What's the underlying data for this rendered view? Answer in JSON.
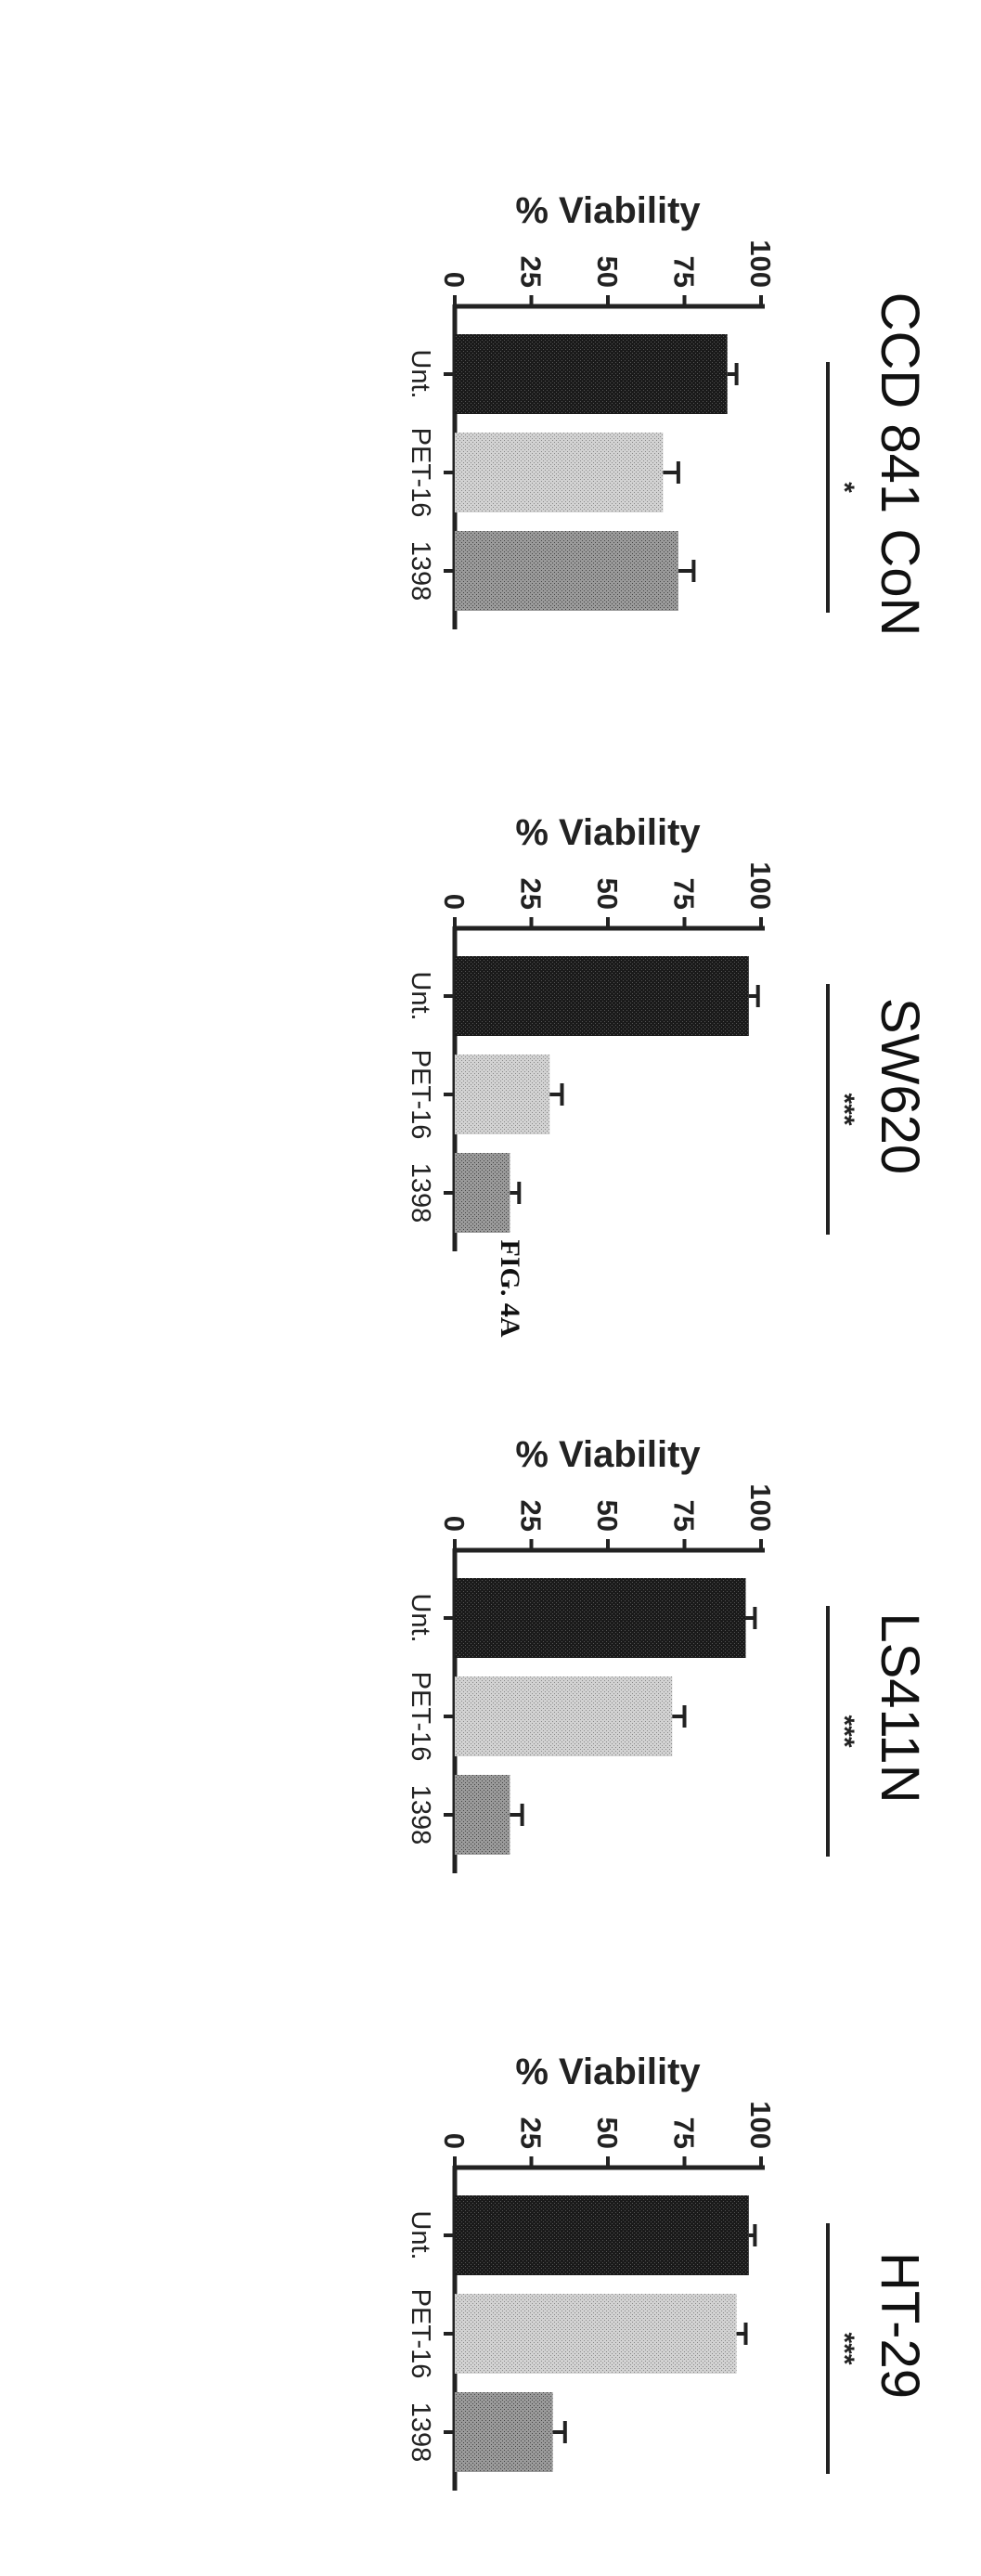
{
  "figure_label": "FIG. 4A",
  "chart_data": [
    {
      "type": "bar",
      "title": "HT-29",
      "ylabel": "% Viability",
      "categories": [
        "Unt.",
        "PET-16",
        "1398"
      ],
      "values": [
        96,
        92,
        32
      ],
      "errors": [
        2,
        3,
        4
      ],
      "ylim": [
        0,
        100
      ],
      "yticks": [
        "0",
        "25",
        "50",
        "75",
        "100"
      ],
      "significance": "***",
      "colors": [
        "#1a1a1a",
        "#c8c8c8",
        "#8a8a8a"
      ]
    },
    {
      "type": "bar",
      "title": "LS411N",
      "ylabel": "% Viability",
      "categories": [
        "Unt.",
        "PET-16",
        "1398"
      ],
      "values": [
        95,
        71,
        18
      ],
      "errors": [
        3,
        4,
        4
      ],
      "ylim": [
        0,
        100
      ],
      "yticks": [
        "0",
        "25",
        "50",
        "75",
        "100"
      ],
      "significance": "***",
      "colors": [
        "#1a1a1a",
        "#c8c8c8",
        "#8a8a8a"
      ]
    },
    {
      "type": "bar",
      "title": "SW620",
      "ylabel": "% Viability",
      "categories": [
        "Unt.",
        "PET-16",
        "1398"
      ],
      "values": [
        96,
        31,
        18
      ],
      "errors": [
        3,
        4,
        3
      ],
      "ylim": [
        0,
        100
      ],
      "yticks": [
        "0",
        "25",
        "50",
        "75",
        "100"
      ],
      "significance": "***",
      "colors": [
        "#1a1a1a",
        "#c8c8c8",
        "#8a8a8a"
      ]
    },
    {
      "type": "bar",
      "title": "CCD 841 CoN",
      "ylabel": "% Viability",
      "categories": [
        "Unt.",
        "PET-16",
        "1398"
      ],
      "values": [
        89,
        68,
        73
      ],
      "errors": [
        3,
        5,
        5
      ],
      "ylim": [
        0,
        100
      ],
      "yticks": [
        "0",
        "25",
        "50",
        "75",
        "100"
      ],
      "significance": "*",
      "colors": [
        "#1a1a1a",
        "#c8c8c8",
        "#8a8a8a"
      ]
    }
  ]
}
